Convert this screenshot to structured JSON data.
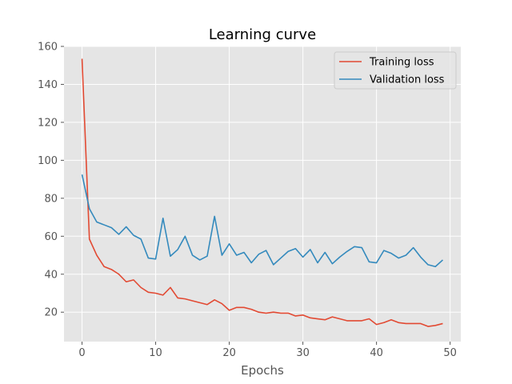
{
  "chart_data": {
    "type": "line",
    "title": "Learning curve",
    "xlabel": "Epochs",
    "ylabel": "",
    "xlim": [
      -2.45,
      51.45
    ],
    "ylim": [
      4.5,
      160
    ],
    "xticks": [
      0,
      10,
      20,
      30,
      40,
      50
    ],
    "yticks": [
      20,
      40,
      60,
      80,
      100,
      120,
      140,
      160
    ],
    "grid": true,
    "legend_position": "top-right",
    "colors": {
      "background": "#e5e5e5",
      "grid": "#ffffff",
      "tick_label": "#555555"
    },
    "x": [
      0,
      1,
      2,
      3,
      4,
      5,
      6,
      7,
      8,
      9,
      10,
      11,
      12,
      13,
      14,
      15,
      16,
      17,
      18,
      19,
      20,
      21,
      22,
      23,
      24,
      25,
      26,
      27,
      28,
      29,
      30,
      31,
      32,
      33,
      34,
      35,
      36,
      37,
      38,
      39,
      40,
      41,
      42,
      43,
      44,
      45,
      46,
      47,
      48,
      49
    ],
    "series": [
      {
        "name": "Training loss",
        "color": "#e24a33",
        "values": [
          153.5,
          58.5,
          50.0,
          44.0,
          42.5,
          40.0,
          36.0,
          37.0,
          33.0,
          30.5,
          30.0,
          29.0,
          33.0,
          27.5,
          27.0,
          26.0,
          25.0,
          24.0,
          26.5,
          24.5,
          21.0,
          22.5,
          22.5,
          21.5,
          20.0,
          19.5,
          20.0,
          19.5,
          19.5,
          18.0,
          18.5,
          17.0,
          16.5,
          16.0,
          17.5,
          16.5,
          15.5,
          15.5,
          15.5,
          16.5,
          13.5,
          14.5,
          16.0,
          14.5,
          14.0,
          14.0,
          14.0,
          12.5,
          13.0,
          14.0
        ]
      },
      {
        "name": "Validation loss",
        "color": "#348abd",
        "values": [
          92.5,
          74.5,
          67.5,
          66.0,
          64.5,
          61.0,
          65.0,
          60.5,
          58.5,
          48.5,
          48.0,
          69.5,
          49.5,
          53.0,
          60.0,
          50.0,
          47.5,
          49.5,
          70.5,
          50.0,
          56.0,
          50.0,
          51.5,
          46.0,
          50.5,
          52.5,
          45.0,
          48.5,
          52.0,
          53.5,
          49.0,
          53.0,
          46.0,
          51.5,
          45.5,
          49.0,
          52.0,
          54.5,
          54.0,
          46.5,
          46.0,
          52.5,
          51.0,
          48.5,
          50.0,
          54.0,
          49.0,
          45.0,
          44.0,
          47.5
        ]
      }
    ]
  }
}
